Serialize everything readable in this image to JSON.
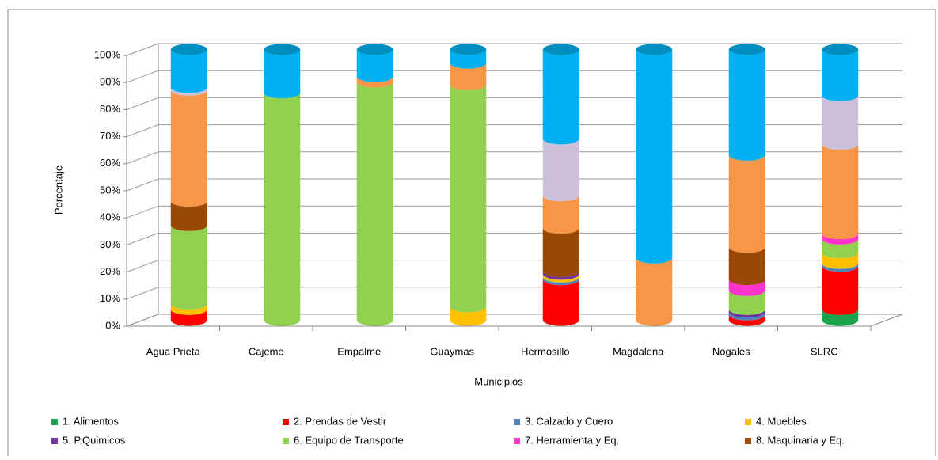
{
  "chart_data": {
    "type": "stacked-cylinder",
    "x_label": "Municipios",
    "y_label": "Porcentaje",
    "categories": [
      "Agua Prieta",
      "Cajeme",
      "Empalme",
      "Guaymas",
      "Hermosillo",
      "Magdalena",
      "Nogales",
      "SLRC"
    ],
    "ylim": [
      0,
      100
    ],
    "yticks": [
      {
        "value": 0,
        "label": "0%"
      },
      {
        "value": 10,
        "label": "10%"
      },
      {
        "value": 20,
        "label": "20%"
      },
      {
        "value": 30,
        "label": "30%"
      },
      {
        "value": 40,
        "label": "40%"
      },
      {
        "value": 50,
        "label": "50%"
      },
      {
        "value": 60,
        "label": "60%"
      },
      {
        "value": 70,
        "label": "70%"
      },
      {
        "value": 80,
        "label": "80%"
      },
      {
        "value": 90,
        "label": "90%"
      },
      {
        "value": 100,
        "label": "100%"
      }
    ],
    "grid": true,
    "series": [
      {
        "name": "1. Alimentos",
        "color": "#1aa34a",
        "values": [
          0,
          0,
          0,
          0,
          0,
          0,
          0,
          4
        ]
      },
      {
        "name": "2. Prendas de Vestir",
        "color": "#ff0000",
        "values": [
          4,
          0,
          0,
          0,
          15,
          0,
          2,
          16
        ]
      },
      {
        "name": "3. Calzado y Cuero",
        "color": "#4f81bd",
        "values": [
          0,
          0,
          0,
          0,
          1,
          0,
          1,
          1
        ]
      },
      {
        "name": "4. Muebles",
        "color": "#ffc000",
        "values": [
          2,
          0,
          0,
          5,
          1,
          0,
          0,
          4
        ]
      },
      {
        "name": "5. P.Quimicos",
        "color": "#7030a0",
        "values": [
          0,
          0,
          0,
          0,
          1,
          0,
          1,
          0
        ]
      },
      {
        "name": "6. Equipo de Transporte",
        "color": "#92d050",
        "values": [
          29,
          84,
          88,
          82,
          0,
          0,
          7,
          5
        ]
      },
      {
        "name": "7. Herramienta y Eq.",
        "color": "#ff33cc",
        "values": [
          0,
          0,
          0,
          0,
          0,
          0,
          4,
          2
        ]
      },
      {
        "name": "8. Maquinaria y Eq.",
        "color": "#984807",
        "values": [
          9,
          0,
          0,
          0,
          16,
          0,
          12,
          0
        ]
      },
      {
        "color": "#f79646",
        "values": [
          41,
          0,
          2,
          8,
          12,
          23,
          34,
          33
        ]
      },
      {
        "color": "#ccc0da",
        "values": [
          1,
          0,
          0,
          0,
          21,
          0,
          0,
          18
        ]
      },
      {
        "color": "#00b0f0",
        "values": [
          14,
          16,
          10,
          5,
          33,
          77,
          39,
          17
        ]
      }
    ]
  }
}
